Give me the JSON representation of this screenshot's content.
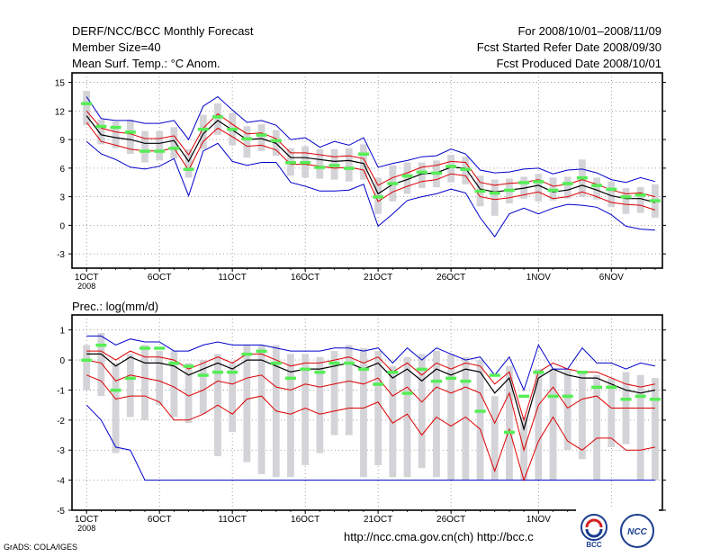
{
  "header": {
    "title": "DERF/NCC/BCC Monthly Forecast",
    "member_size": "Member Size=40",
    "variable": "Mean Surf. Temp.: °C Anom.",
    "period": "For 2008/10/01–2008/11/09",
    "started": "Fcst Started Refer Date 2008/09/30",
    "produced": "Fcst Produced Date 2008/10/01"
  },
  "footer": {
    "grads": "GrADS: COLA/IGES",
    "urls": "http://ncc.cma.gov.cn(ch)   http://bcc.c",
    "logo_bcc": "BCC",
    "logo_ncc": "NCC"
  },
  "colors": {
    "box": "#d3d3d8",
    "median": "#55ee55",
    "mean": "#000000",
    "inner": "#dd0000",
    "outer": "#0000cc",
    "grid": "#888888"
  },
  "chart_data": [
    {
      "type": "boxplot-line",
      "title": "Mean Surf. Temp.: °C Anom.",
      "x_labels": [
        "1OCT\n2008",
        "6OCT",
        "11OCT",
        "16OCT",
        "21OCT",
        "26OCT",
        "1NOV",
        "6NOV"
      ],
      "x_label_days": [
        1,
        6,
        11,
        16,
        21,
        26,
        32,
        37
      ],
      "xlim": [
        0,
        40.5
      ],
      "ylim": [
        -4.5,
        16
      ],
      "y_ticks": [
        -3,
        0,
        3,
        6,
        9,
        12,
        15
      ],
      "days": [
        1,
        2,
        3,
        4,
        5,
        6,
        7,
        8,
        9,
        10,
        11,
        12,
        13,
        14,
        15,
        16,
        17,
        18,
        19,
        20,
        21,
        22,
        23,
        24,
        25,
        26,
        27,
        28,
        29,
        30,
        31,
        32,
        33,
        34,
        35,
        36,
        37,
        38,
        39,
        40
      ],
      "series": [
        {
          "name": "ensemble_mean",
          "values": [
            11.5,
            9.5,
            9.2,
            9.0,
            8.6,
            8.6,
            8.9,
            6.7,
            9.6,
            11.0,
            10.0,
            9.0,
            9.1,
            8.6,
            7.1,
            7.1,
            6.9,
            6.7,
            6.8,
            6.5,
            3.3,
            4.3,
            4.8,
            5.4,
            5.5,
            6.1,
            6.0,
            3.8,
            3.5,
            3.7,
            3.9,
            4.2,
            3.5,
            3.7,
            4.2,
            3.7,
            3.1,
            2.8,
            2.8,
            2.4
          ]
        },
        {
          "name": "upper_inner",
          "values": [
            12.0,
            10.2,
            9.8,
            9.6,
            9.1,
            9.1,
            9.4,
            7.4,
            10.2,
            11.7,
            10.6,
            9.6,
            9.7,
            9.1,
            7.6,
            7.6,
            7.4,
            7.2,
            7.3,
            7.0,
            4.2,
            5.0,
            5.5,
            6.1,
            6.3,
            6.7,
            6.6,
            4.5,
            4.2,
            4.4,
            4.5,
            4.8,
            4.1,
            4.3,
            4.8,
            4.3,
            3.7,
            3.3,
            3.4,
            3.0
          ]
        },
        {
          "name": "lower_inner",
          "values": [
            10.8,
            8.8,
            8.4,
            8.0,
            7.8,
            7.8,
            8.1,
            5.8,
            8.8,
            10.2,
            9.3,
            8.3,
            8.4,
            7.9,
            6.4,
            6.4,
            6.2,
            6.0,
            6.1,
            5.8,
            2.5,
            3.5,
            4.1,
            4.6,
            4.8,
            5.4,
            5.2,
            3.0,
            2.7,
            2.9,
            3.2,
            3.5,
            2.8,
            3.0,
            3.5,
            3.0,
            2.4,
            2.2,
            2.1,
            1.6
          ]
        },
        {
          "name": "upper_outer",
          "values": [
            13.5,
            11.2,
            11.0,
            11.0,
            10.7,
            10.7,
            11.0,
            9.0,
            12.5,
            13.5,
            12.1,
            10.8,
            11.0,
            10.5,
            9.0,
            9.2,
            8.2,
            8.8,
            8.4,
            9.2,
            6.1,
            6.5,
            6.8,
            7.2,
            7.3,
            8.0,
            7.5,
            5.8,
            5.5,
            5.6,
            5.9,
            6.0,
            5.4,
            5.8,
            5.9,
            5.5,
            4.8,
            4.5,
            5.0,
            4.6
          ]
        },
        {
          "name": "lower_outer",
          "values": [
            8.8,
            7.5,
            6.9,
            6.1,
            5.9,
            6.2,
            7.0,
            3.1,
            7.8,
            8.6,
            6.7,
            6.3,
            6.6,
            6.6,
            4.5,
            4.1,
            3.6,
            3.6,
            3.7,
            4.3,
            -0.1,
            1.2,
            2.6,
            3.0,
            3.3,
            3.8,
            3.4,
            0.8,
            -1.2,
            1.2,
            1.8,
            1.2,
            1.8,
            2.2,
            2.1,
            1.9,
            1.1,
            -0.1,
            -0.4,
            -0.5
          ]
        },
        {
          "name": "median",
          "values": [
            12.8,
            10.4,
            10.3,
            9.8,
            7.8,
            7.8,
            8.1,
            5.9,
            10.1,
            11.4,
            10.1,
            9.1,
            9.5,
            8.9,
            6.6,
            6.6,
            6.1,
            6.3,
            6.0,
            7.5,
            3.0,
            4.4,
            5.2,
            5.6,
            5.5,
            6.2,
            5.9,
            3.6,
            3.4,
            3.7,
            4.5,
            4.6,
            3.7,
            4.4,
            5.0,
            4.2,
            3.8,
            3.0,
            3.2,
            2.6
          ]
        }
      ],
      "boxes": {
        "low": [
          10.5,
          8.5,
          8.1,
          7.5,
          6.6,
          6.8,
          7.0,
          5.0,
          8.0,
          9.5,
          8.4,
          7.1,
          7.8,
          7.3,
          5.2,
          5.0,
          4.9,
          4.8,
          4.6,
          4.8,
          1.2,
          2.5,
          3.3,
          3.9,
          4.0,
          4.5,
          4.3,
          2.0,
          1.0,
          2.3,
          2.8,
          2.5,
          2.6,
          2.8,
          3.0,
          2.7,
          1.9,
          1.2,
          1.3,
          0.8
        ],
        "high": [
          14.1,
          11.1,
          10.9,
          11.1,
          9.9,
          9.9,
          10.3,
          8.0,
          11.6,
          12.8,
          11.8,
          10.4,
          10.6,
          10.0,
          8.1,
          8.3,
          8.0,
          8.0,
          8.1,
          8.5,
          5.0,
          6.3,
          6.6,
          6.6,
          6.8,
          7.4,
          7.2,
          5.2,
          4.8,
          4.9,
          5.1,
          5.4,
          5.0,
          5.1,
          6.9,
          5.0,
          4.6,
          3.9,
          4.0,
          4.3
        ]
      }
    },
    {
      "type": "boxplot-line",
      "title": "Prec.: log(mm/d)",
      "x_labels": [
        "1OCT\n2008",
        "6OCT",
        "11OCT",
        "16OCT",
        "21OCT",
        "26OCT",
        "1NOV",
        "6NOV"
      ],
      "x_label_days": [
        1,
        6,
        11,
        16,
        21,
        26,
        32,
        37
      ],
      "xlim": [
        0,
        40.5
      ],
      "ylim": [
        -5,
        1.5
      ],
      "y_ticks": [
        -5,
        -4,
        -3,
        -2,
        -1,
        0,
        1
      ],
      "days": [
        1,
        2,
        3,
        4,
        5,
        6,
        7,
        8,
        9,
        10,
        11,
        12,
        13,
        14,
        15,
        16,
        17,
        18,
        19,
        20,
        21,
        22,
        23,
        24,
        25,
        26,
        27,
        28,
        29,
        30,
        31,
        32,
        33,
        34,
        35,
        36,
        37,
        38,
        39,
        40
      ],
      "series": [
        {
          "name": "ensemble_mean",
          "values": [
            0.2,
            0.2,
            -0.2,
            0.1,
            -0.1,
            -0.1,
            -0.2,
            -0.5,
            -0.3,
            -0.1,
            -0.3,
            0.0,
            0.0,
            -0.2,
            -0.4,
            -0.3,
            -0.3,
            -0.2,
            -0.1,
            -0.3,
            -0.1,
            -0.6,
            -0.3,
            -0.7,
            -0.3,
            -0.5,
            -0.3,
            -0.4,
            -1.1,
            -0.6,
            -2.3,
            -0.6,
            -0.3,
            -0.5,
            -0.6,
            -0.6,
            -0.8,
            -1.0,
            -1.1,
            -1.0
          ]
        },
        {
          "name": "upper_inner",
          "values": [
            0.3,
            0.3,
            0.0,
            0.3,
            0.1,
            0.1,
            0.0,
            -0.3,
            -0.1,
            0.1,
            -0.1,
            0.2,
            0.2,
            0.0,
            -0.2,
            -0.1,
            -0.1,
            0.0,
            0.1,
            -0.1,
            0.1,
            -0.4,
            -0.1,
            -0.5,
            -0.1,
            -0.3,
            -0.1,
            -0.2,
            -0.8,
            -0.4,
            -2.0,
            -0.4,
            -0.1,
            -0.3,
            -0.4,
            -0.4,
            -0.6,
            -0.8,
            -0.9,
            -0.8
          ]
        },
        {
          "name": "lower_inner",
          "values": [
            0.0,
            -0.1,
            -0.7,
            -0.5,
            -0.6,
            -0.7,
            -0.9,
            -1.2,
            -1.0,
            -0.7,
            -0.8,
            -0.6,
            -0.5,
            -0.9,
            -1.0,
            -0.8,
            -0.9,
            -0.8,
            -0.7,
            -0.8,
            -0.6,
            -1.2,
            -0.9,
            -1.4,
            -0.9,
            -1.1,
            -0.9,
            -1.1,
            -2.1,
            -1.1,
            -3.0,
            -1.5,
            -0.9,
            -1.6,
            -1.3,
            -1.2,
            -1.6,
            -1.6,
            -1.6,
            -1.6
          ]
        },
        {
          "name": "upper_outer",
          "values": [
            0.8,
            0.8,
            0.5,
            0.7,
            0.6,
            0.6,
            0.3,
            0.3,
            0.5,
            0.6,
            0.5,
            0.5,
            0.5,
            0.4,
            0.3,
            0.3,
            0.3,
            0.4,
            0.4,
            0.3,
            0.4,
            -0.1,
            0.4,
            0.0,
            0.4,
            0.2,
            0.0,
            0.1,
            -0.5,
            0.1,
            -1.0,
            0.5,
            -0.3,
            -0.3,
            0.4,
            -0.1,
            -0.1,
            -0.3,
            -0.1,
            -0.2
          ]
        },
        {
          "name": "lower_outer",
          "values": [
            -1.5,
            -2.0,
            -2.9,
            -3.0,
            -4.0,
            -4.0,
            -4.0,
            -4.0,
            -4.0,
            -4.0,
            -4.0,
            -4.0,
            -4.0,
            -4.0,
            -4.0,
            -4.0,
            -4.0,
            -4.0,
            -4.0,
            -4.0,
            -4.0,
            -4.0,
            -4.0,
            -4.0,
            -4.0,
            -4.0,
            -4.0,
            -4.0,
            -4.0,
            -4.0,
            -4.0,
            -4.0,
            -4.0,
            -4.0,
            -4.0,
            -4.0,
            -4.0,
            -4.0,
            -4.0,
            -4.0
          ]
        },
        {
          "name": "lower_red",
          "values": [
            -0.5,
            -0.7,
            -1.3,
            -1.2,
            -1.2,
            -1.4,
            -2.0,
            -2.0,
            -1.8,
            -1.5,
            -1.8,
            -1.3,
            -1.2,
            -1.7,
            -1.8,
            -1.6,
            -1.8,
            -1.7,
            -1.6,
            -1.6,
            -1.4,
            -2.1,
            -1.8,
            -2.5,
            -1.9,
            -2.2,
            -1.9,
            -2.3,
            -3.7,
            -2.3,
            -4.0,
            -2.7,
            -1.9,
            -2.7,
            -3.0,
            -2.6,
            -2.6,
            -3.0,
            -3.0,
            -2.9
          ]
        },
        {
          "name": "median",
          "values": [
            0.0,
            0.5,
            -1.0,
            -0.6,
            0.4,
            0.4,
            -0.1,
            -0.2,
            -0.5,
            -0.4,
            -0.4,
            0.2,
            0.3,
            -0.1,
            -0.6,
            -0.3,
            -0.4,
            -0.1,
            -0.1,
            -0.3,
            -0.8,
            -0.4,
            -1.1,
            -0.3,
            -0.7,
            -0.6,
            -0.7,
            -1.7,
            -0.5,
            -2.4,
            -1.2,
            -0.4,
            -1.2,
            -1.2,
            -0.4,
            -0.9,
            -0.9,
            -1.3,
            -1.2,
            -1.3
          ]
        }
      ],
      "boxes": {
        "low": [
          -1.0,
          -1.2,
          -3.1,
          -1.9,
          -2.0,
          -1.5,
          -1.9,
          -2.1,
          -1.8,
          -3.2,
          -2.4,
          -3.4,
          -3.8,
          -3.9,
          -3.9,
          -3.5,
          -3.1,
          -2.5,
          -2.5,
          -3.9,
          -3.5,
          -3.9,
          -3.9,
          -3.6,
          -3.9,
          -4.0,
          -4.0,
          -4.0,
          -4.0,
          -4.0,
          -4.0,
          -4.0,
          -4.0,
          -3.0,
          -3.3,
          -4.0,
          -2.9,
          -2.8,
          -4.0,
          -4.0
        ],
        "high": [
          0.5,
          0.9,
          -0.1,
          0.2,
          0.5,
          0.3,
          0.3,
          -0.1,
          0.0,
          0.2,
          -0.1,
          0.5,
          0.5,
          0.5,
          0.2,
          0.2,
          0.1,
          0.3,
          0.5,
          0.4,
          0.3,
          -0.2,
          0.1,
          0.2,
          0.3,
          0.2,
          0.1,
          0.0,
          -1.2,
          -0.2,
          -1.9,
          -0.3,
          -0.3,
          -0.3,
          -0.4,
          -0.5,
          -0.6,
          -0.4,
          -0.5,
          -0.6
        ]
      }
    }
  ]
}
